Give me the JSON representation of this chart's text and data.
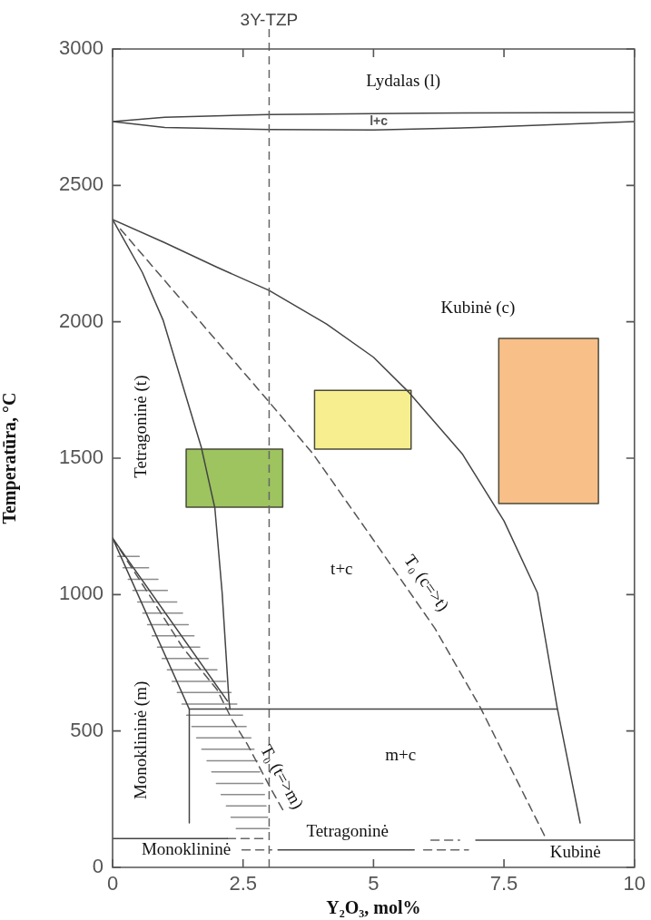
{
  "chart_data": {
    "type": "line",
    "xlabel": "Y₂O₃, mol%",
    "ylabel": "Temperatūra, °C",
    "xlim": [
      0,
      10
    ],
    "ylim": [
      0,
      3000
    ],
    "xticks": [
      0,
      2.5,
      5,
      7.5,
      10
    ],
    "yticks": [
      0,
      500,
      1000,
      1500,
      2000,
      2500,
      3000
    ],
    "grid": false,
    "legend": false,
    "marker": "none",
    "line_style": "solid",
    "series": [
      {
        "type": "area",
        "color": "#9dc45f",
        "x": [
          1.41,
          3.26,
          3.26,
          1.41,
          1.41
        ],
        "values": [
          1320,
          1320,
          1533,
          1533,
          1320
        ]
      },
      {
        "type": "area",
        "color": "#f7ef8f",
        "x": [
          3.87,
          5.72,
          5.72,
          3.87,
          3.87
        ],
        "values": [
          1533,
          1533,
          1749,
          1749,
          1533
        ]
      },
      {
        "type": "area",
        "color": "#f8bf88",
        "x": [
          7.4,
          9.31,
          9.31,
          7.4,
          7.4
        ],
        "values": [
          1334,
          1334,
          1939,
          1939,
          1334
        ]
      },
      {
        "color": "#444444",
        "x": [
          0,
          1,
          3,
          6,
          10
        ],
        "values": [
          2734,
          2750,
          2760,
          2765,
          2767
        ]
      },
      {
        "color": "#444444",
        "x": [
          0,
          1,
          3,
          5,
          7,
          10
        ],
        "values": [
          2734,
          2712,
          2705,
          2703,
          2712,
          2734
        ]
      },
      {
        "color": "#444444",
        "x": [
          0,
          1,
          2,
          3,
          4.1,
          5,
          5.69,
          6.7,
          7.5,
          8.14,
          8.52,
          8.96
        ],
        "values": [
          2375,
          2290,
          2200,
          2115,
          1992,
          1870,
          1739,
          1516,
          1270,
          1007,
          585,
          163
        ]
      },
      {
        "color": "#555555",
        "line_style": "dashed",
        "x": [
          0.15,
          3,
          3.84,
          5,
          6.18,
          7.05,
          8.32
        ],
        "values": [
          2340,
          1706,
          1516,
          1200,
          875,
          585,
          100
        ]
      },
      {
        "color": "#444444",
        "x": [
          0,
          0.57,
          0.97,
          1.7,
          1.96,
          2.1,
          2.23,
          2.25
        ],
        "values": [
          2375,
          2181,
          2005,
          1540,
          1317,
          1005,
          612,
          580
        ]
      },
      {
        "color": "#444444",
        "x": [
          1.47,
          8.52
        ],
        "values": [
          580,
          580
        ]
      },
      {
        "color": "#444444",
        "x": [
          0,
          2.2
        ],
        "values": [
          1207,
          610
        ]
      },
      {
        "color": "#444444",
        "x": [
          0,
          1.47,
          1.47
        ],
        "values": [
          1207,
          580,
          163
        ]
      },
      {
        "color": "#555555",
        "line_style": "dashed",
        "x": [
          0,
          0.79,
          1.34,
          2,
          2.29,
          2.58,
          3.04,
          3.27
        ],
        "values": [
          1207,
          973,
          807,
          652,
          541,
          452,
          286,
          208
        ]
      },
      {
        "color": "#8c8c8c",
        "x": [
          0.1,
          0.51,
          null,
          0.2,
          0.69,
          null,
          0.3,
          0.87,
          null,
          0.39,
          1.05,
          null,
          0.48,
          1.23,
          null,
          0.58,
          1.34,
          null,
          0.67,
          1.45,
          null,
          0.76,
          1.56,
          null,
          0.86,
          1.67,
          null,
          0.95,
          1.83,
          null,
          1.05,
          2,
          null,
          1.14,
          2.17,
          null,
          1.24,
          2.27,
          null,
          1.33,
          2.38,
          null,
          1.42,
          2.49,
          null,
          1.52,
          2.56,
          null,
          1.61,
          2.65,
          null,
          1.71,
          2.71,
          null,
          1.81,
          2.77,
          null,
          1.9,
          2.82,
          null,
          1.99,
          2.88,
          null,
          2.08,
          2.91,
          null,
          2.18,
          2.94,
          null,
          2.27,
          2.97,
          null,
          2.37,
          3
        ],
        "values": [
          1140,
          1140,
          null,
          1098,
          1098,
          null,
          1056,
          1056,
          null,
          1015,
          1015,
          null,
          973,
          973,
          null,
          932,
          932,
          null,
          890,
          890,
          null,
          849,
          849,
          null,
          807,
          807,
          null,
          766,
          766,
          null,
          724,
          724,
          null,
          682,
          682,
          null,
          641,
          641,
          null,
          599,
          599,
          null,
          558,
          558,
          null,
          516,
          516,
          null,
          475,
          475,
          null,
          433,
          433,
          null,
          391,
          391,
          null,
          350,
          350,
          null,
          308,
          308,
          null,
          267,
          267,
          null,
          225,
          225,
          null,
          184,
          184,
          null,
          142,
          142
        ]
      },
      {
        "color": "#444444",
        "x": [
          0,
          2.2
        ],
        "values": [
          106,
          106
        ]
      },
      {
        "color": "#666666",
        "line_style": "dashed",
        "x": [
          2.2,
          2.9
        ],
        "values": [
          106,
          106
        ]
      },
      {
        "color": "#666666",
        "line_style": "dashed",
        "x": [
          6.1,
          6.65
        ],
        "values": [
          100,
          100
        ]
      },
      {
        "color": "#444444",
        "x": [
          6.96,
          10
        ],
        "values": [
          100,
          100
        ]
      },
      {
        "color": "#666666",
        "line_style": "dashed",
        "x": [
          2.48,
          3.05
        ],
        "values": [
          64,
          64
        ]
      },
      {
        "color": "#444444",
        "x": [
          3.17,
          5.78
        ],
        "values": [
          64,
          64
        ]
      },
      {
        "color": "#666666",
        "line_style": "dashed",
        "x": [
          5.96,
          6.82
        ],
        "values": [
          64,
          64
        ]
      }
    ],
    "ref_lines": [
      {
        "axis": "x",
        "value": 3,
        "label": "3Y-TZP",
        "color": "#666666",
        "line_style": "dashed"
      }
    ],
    "annotations": [
      "Lydalas (l)",
      "l+c",
      "Kubinė (c)",
      "Tetragoninė (t)",
      "t+c",
      "T₀ (c=>t)",
      "Monoklininė (m)",
      "T₀ (t=>m)",
      "m+c",
      "Tetragoninė",
      "Monoklininė",
      "Kubinė"
    ]
  }
}
